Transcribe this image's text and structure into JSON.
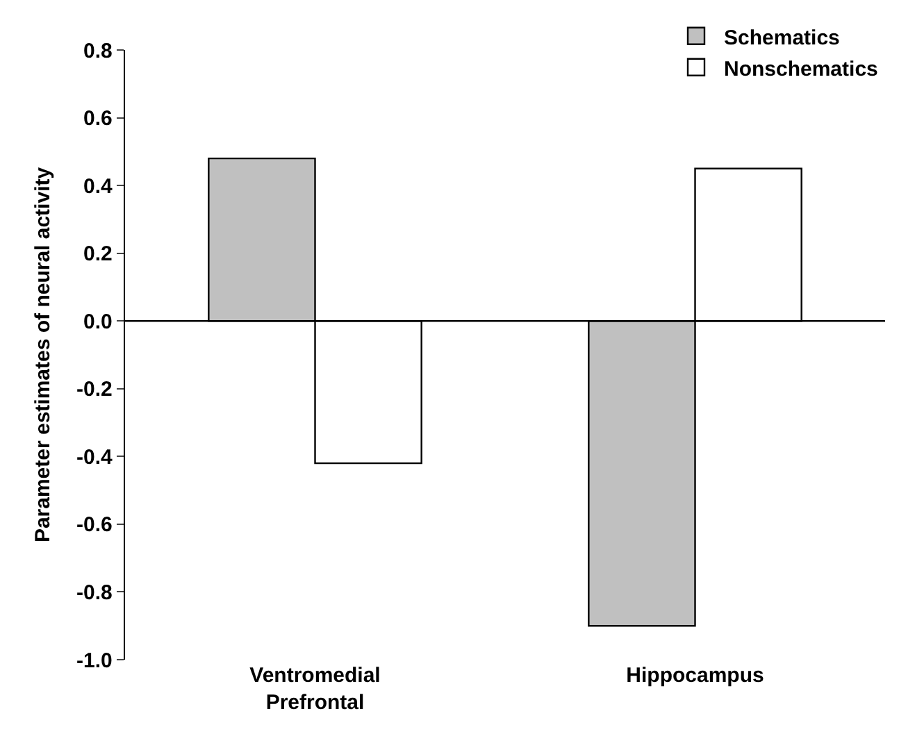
{
  "chart_data": {
    "type": "bar",
    "ylabel": "Parameter estimates of neural activity",
    "categories": [
      "Ventromedial\nPrefrontal",
      "Hippocampus"
    ],
    "series": [
      {
        "name": "Schematics",
        "color": "#c0c0c0",
        "values": [
          0.48,
          -0.9
        ]
      },
      {
        "name": "Nonschematics",
        "color": "#ffffff",
        "values": [
          -0.42,
          0.45
        ]
      }
    ],
    "ylim": [
      -1.0,
      0.8
    ],
    "yticks": [
      {
        "value": 0.8,
        "label": "0.8"
      },
      {
        "value": 0.6,
        "label": "0.6"
      },
      {
        "value": 0.4,
        "label": "0.4"
      },
      {
        "value": 0.2,
        "label": "0.2"
      },
      {
        "value": 0,
        "label": "0.0"
      },
      {
        "value": -0.2,
        "label": "-0.2"
      },
      {
        "value": -0.4,
        "label": "-0.4"
      },
      {
        "value": -0.6,
        "label": "-0.6"
      },
      {
        "value": -0.8,
        "label": "-0.8"
      },
      {
        "value": -1.0,
        "label": "-1.0"
      }
    ],
    "legend": "top right"
  }
}
